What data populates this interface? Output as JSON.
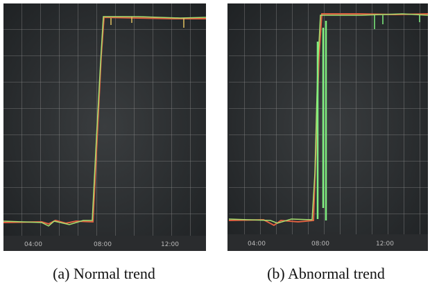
{
  "panels": [
    {
      "caption": "(a) Normal trend",
      "time_labels": [
        "04:00",
        "08:00",
        "12:00"
      ]
    },
    {
      "caption": "(b) Abnormal trend",
      "time_labels": [
        "04:00",
        "08:00",
        "12:00"
      ]
    }
  ]
}
